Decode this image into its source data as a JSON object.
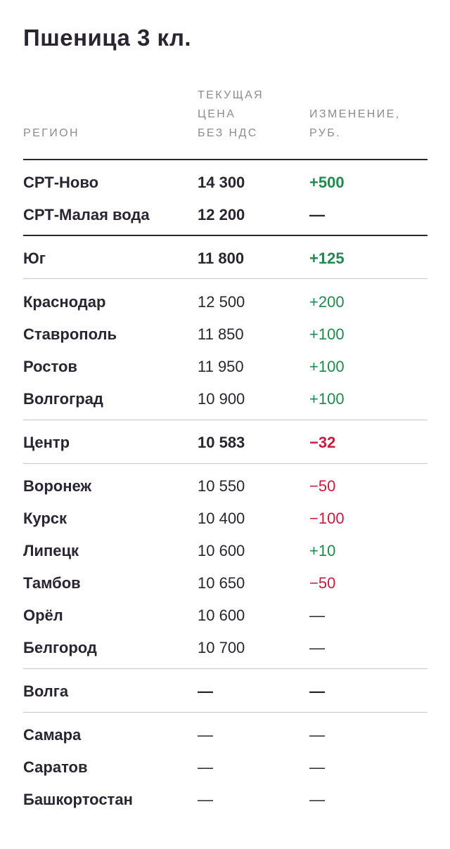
{
  "title": "Пшеница 3 кл.",
  "headers": {
    "region": "РЕГИОН",
    "price_l1": "ТЕКУЩАЯ",
    "price_l2": "ЦЕНА",
    "price_l3": "БЕЗ НДС",
    "change_l1": "ИЗМЕНЕНИЕ,",
    "change_l2": "РУБ."
  },
  "colors": {
    "text": "#2a2530",
    "header": "#8e8a92",
    "positive": "#1f8a4c",
    "negative": "#d0183d",
    "rule": "#c9c6cb"
  },
  "rows": [
    {
      "region": "СРТ-Ново",
      "price": "14 300",
      "change": "+500",
      "bold": true
    },
    {
      "region": "СРТ-Малая вода",
      "price": "12 200",
      "change": "—",
      "bold": true
    },
    {
      "region": "Юг",
      "price": "11 800",
      "change": "+125",
      "bold": true
    },
    {
      "region": "Краснодар",
      "price": "12 500",
      "change": "+200",
      "bold": false
    },
    {
      "region": "Ставрополь",
      "price": "11 850",
      "change": "+100",
      "bold": false
    },
    {
      "region": "Ростов",
      "price": "11 950",
      "change": "+100",
      "bold": false
    },
    {
      "region": "Волгоград",
      "price": "10 900",
      "change": "+100",
      "bold": false
    },
    {
      "region": "Центр",
      "price": "10 583",
      "change": "−32",
      "bold": true
    },
    {
      "region": "Воронеж",
      "price": "10 550",
      "change": "−50",
      "bold": false
    },
    {
      "region": "Курск",
      "price": "10 400",
      "change": "−100",
      "bold": false
    },
    {
      "region": "Липецк",
      "price": "10 600",
      "change": "+10",
      "bold": false
    },
    {
      "region": "Тамбов",
      "price": "10 650",
      "change": "−50",
      "bold": false
    },
    {
      "region": "Орёл",
      "price": "10 600",
      "change": "—",
      "bold": false
    },
    {
      "region": "Белгород",
      "price": "10 700",
      "change": "—",
      "bold": false
    },
    {
      "region": "Волга",
      "price": "—",
      "change": "—",
      "bold": true
    },
    {
      "region": "Самара",
      "price": "—",
      "change": "—",
      "bold": false
    },
    {
      "region": "Саратов",
      "price": "—",
      "change": "—",
      "bold": false
    },
    {
      "region": "Башкортостан",
      "price": "—",
      "change": "—",
      "bold": false
    }
  ]
}
